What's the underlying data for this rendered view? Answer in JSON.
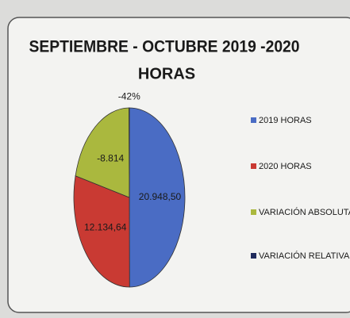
{
  "chart_data": {
    "type": "pie",
    "title": "SEPTIEMBRE - OCTUBRE 2019 -2020",
    "subtitle": "HORAS",
    "categories": [
      "2019 HORAS",
      "2020 HORAS",
      "VARIACIÓN ABSOLUTA",
      "VARIACIÓN RELATIVA"
    ],
    "values": [
      20948.5,
      12134.64,
      -8814,
      -42
    ],
    "value_labels": [
      "20.948,50",
      "12.134,64",
      "-8.814",
      "-42%"
    ],
    "colors": [
      "#4a6cc4",
      "#c93a33",
      "#aab83e",
      "#1f2a5c"
    ],
    "legend": "right"
  }
}
